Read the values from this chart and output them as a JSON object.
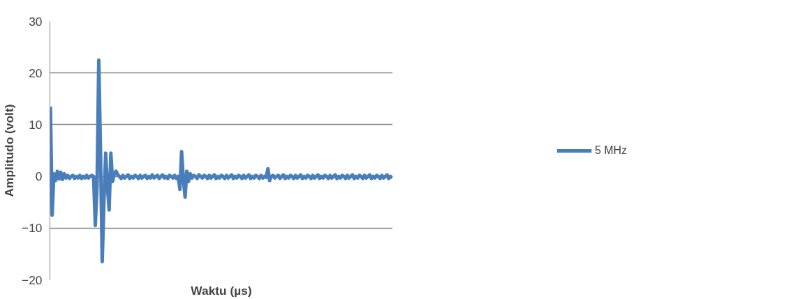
{
  "chart_data": {
    "type": "line",
    "xlabel": "Waktu (µs)",
    "ylabel": "Amplitudo (volt)",
    "categories": [
      null,
      null,
      null,
      null,
      null,
      null,
      null,
      null,
      null,
      null,
      null,
      null,
      null,
      null,
      null,
      null,
      null,
      null,
      null,
      null,
      null,
      null,
      null,
      null,
      null,
      null,
      null,
      null,
      null,
      null,
      null,
      null,
      null,
      null,
      null,
      null,
      null,
      null,
      null,
      null,
      null,
      null,
      null,
      null,
      null,
      null,
      null,
      null,
      null,
      null,
      null,
      null,
      null,
      null,
      null,
      null,
      null,
      null,
      null,
      null,
      null,
      null,
      null,
      null,
      null,
      null,
      null,
      null,
      null,
      null,
      null,
      null,
      null,
      null,
      null,
      null,
      null,
      null,
      null,
      null,
      null,
      null,
      null,
      null,
      null,
      null,
      null,
      null,
      null,
      null,
      null,
      null,
      null,
      null,
      null,
      null,
      null,
      null,
      null,
      null,
      null,
      null,
      null,
      null,
      null,
      null,
      null,
      null,
      null,
      null,
      null,
      null,
      null,
      null,
      null,
      null,
      null,
      null,
      null,
      null,
      null,
      null,
      null,
      null,
      null,
      null,
      null,
      null,
      null,
      null,
      null,
      null,
      null,
      null,
      null,
      null,
      null,
      null,
      null,
      null,
      null,
      null,
      null,
      null,
      null,
      null,
      null,
      null,
      null,
      null,
      null,
      null,
      null,
      null,
      null,
      null,
      null,
      null,
      null,
      null,
      null,
      null,
      null,
      null,
      null,
      null,
      null,
      null,
      null,
      null,
      null,
      null,
      null,
      null,
      null,
      null,
      null,
      null,
      null,
      null,
      null,
      null,
      null,
      null,
      null,
      null,
      null,
      null,
      null,
      null,
      null,
      null,
      null,
      null,
      null,
      null,
      null,
      null,
      null
    ],
    "series": [
      {
        "name": "5 MHz",
        "color": "#4a7ebb",
        "values": [
          13.5,
          -7.5,
          0.5,
          -0.8,
          1,
          -0.5,
          0.8,
          -0.6,
          0.5,
          -0.3,
          0.2,
          -0.4,
          0,
          0.2,
          -0.4,
          0,
          -0.3,
          0.2,
          -0.4,
          0,
          -0.3,
          0.2,
          -0.3,
          0,
          0.2,
          0,
          -9.5,
          -2,
          22.5,
          5,
          -16.5,
          -5,
          4.5,
          -2,
          -6.5,
          4.5,
          -1,
          0.5,
          1,
          0.3,
          0,
          -0.4,
          0.2,
          -0.3,
          0,
          0.3,
          -0.4,
          0,
          -0.3,
          0.2,
          0,
          -0.4,
          0.2,
          -0.3,
          0,
          0.2,
          -0.4,
          0,
          -0.3,
          0.3,
          -0.3,
          0,
          0.2,
          -0.4,
          0,
          0.3,
          -0.3,
          0,
          -0.4,
          0.2,
          0,
          -0.3,
          0.2,
          -0.4,
          0,
          -2.5,
          4.8,
          -0.5,
          -4,
          1,
          -1,
          0.5,
          -0.3,
          0.2,
          0,
          -0.4,
          0.3,
          0,
          -0.3,
          0.2,
          0,
          -0.4,
          0.2,
          -0.3,
          0,
          0.3,
          -0.4,
          0,
          -0.3,
          0.2,
          0,
          -0.4,
          0.2,
          -0.3,
          0,
          0.3,
          -0.4,
          0,
          -0.3,
          0.2,
          0,
          -0.4,
          0.2,
          -0.3,
          0,
          0.3,
          -0.4,
          0,
          -0.3,
          0.2,
          0,
          -0.4,
          0.2,
          -0.3,
          0,
          -0.2,
          1.5,
          -0.8,
          0,
          0.2,
          -0.3,
          0,
          0.2,
          -0.4,
          0,
          0.3,
          -0.4,
          0,
          -0.3,
          0.2,
          0,
          -0.4,
          0.2,
          -0.3,
          0,
          0.3,
          -0.4,
          0,
          -0.3,
          0.2,
          0,
          -0.4,
          0.2,
          -0.3,
          0,
          0.3,
          -0.4,
          0,
          -0.3,
          0.2,
          0,
          -0.4,
          0.2,
          -0.3,
          0,
          0.3,
          -0.4,
          0,
          -0.3,
          0.2,
          0,
          -0.4,
          0.2,
          -0.3,
          0,
          0.3,
          -0.4,
          0,
          -0.3,
          0.2,
          0,
          -0.4,
          0.2,
          -0.3,
          0,
          0.3,
          -0.4,
          0,
          -0.3,
          0.2,
          0,
          -0.4,
          0.2,
          -0.3,
          0,
          0.3,
          -0.4,
          0,
          -0.3
        ]
      }
    ],
    "ylim": [
      -20,
      30
    ],
    "yticks": [
      -20,
      -10,
      0,
      10,
      20,
      30
    ],
    "grid": "y",
    "legend": "right",
    "tick_labels": "y",
    "marker": "none",
    "line_style": "solid"
  }
}
